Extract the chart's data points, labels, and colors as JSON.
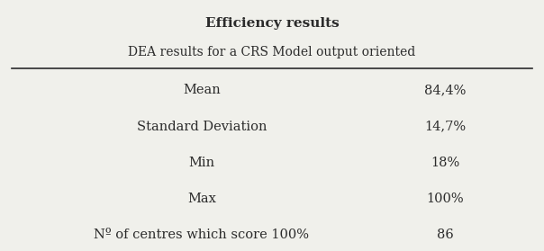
{
  "title_bold": "Efficiency results",
  "title_normal": "DEA results for a CRS Model output oriented",
  "rows": [
    [
      "Mean",
      "84,4%"
    ],
    [
      "Standard Deviation",
      "14,7%"
    ],
    [
      "Min",
      "18%"
    ],
    [
      "Max",
      "100%"
    ],
    [
      "Nº of centres which score 100%",
      "86"
    ]
  ],
  "bg_color": "#f0f0eb",
  "text_color": "#2b2b2b",
  "title_fontsize": 11,
  "subtitle_fontsize": 10,
  "row_fontsize": 10.5,
  "fig_width": 6.04,
  "fig_height": 2.79,
  "dpi": 100
}
